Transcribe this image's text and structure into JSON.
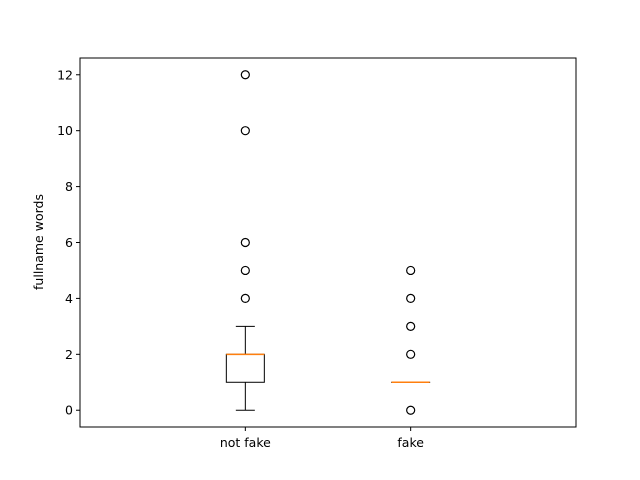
{
  "chart_data": {
    "type": "boxplot",
    "title": "",
    "xlabel": "",
    "ylabel": "fullname words",
    "ylim": [
      -0.6,
      12.6
    ],
    "yticks": [
      0,
      2,
      4,
      6,
      8,
      10,
      12
    ],
    "grid": false,
    "categories": [
      "not fake",
      "fake"
    ],
    "boxes": [
      {
        "q1": 1,
        "median": 2,
        "q3": 2,
        "whisker_low": 0,
        "whisker_high": 3,
        "outliers": [
          4,
          5,
          6,
          10,
          12
        ]
      },
      {
        "q1": 1,
        "median": 1,
        "q3": 1,
        "whisker_low": 1,
        "whisker_high": 1,
        "outliers": [
          0,
          2,
          3,
          4,
          5
        ]
      }
    ],
    "colors": {
      "box": "#000000",
      "median": "#ff7f0e",
      "outlier": "#000000"
    }
  }
}
